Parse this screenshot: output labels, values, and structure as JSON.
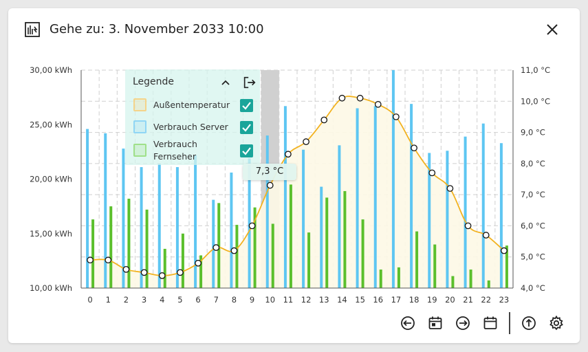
{
  "header": {
    "title": "Gehe zu: 3. November 2033 10:00",
    "icon": "building-meter-icon",
    "close_icon": "close-icon"
  },
  "legend": {
    "title": "Legende",
    "items": [
      {
        "label": "Außentemperatur",
        "color": "#f5d48a",
        "checked": true
      },
      {
        "label": "Verbrauch Server",
        "color": "#8fd6f5",
        "checked": true
      },
      {
        "label": "Verbrauch Fernseher",
        "color": "#9fe08a",
        "checked": true
      }
    ]
  },
  "tooltip": {
    "text": "7,3 °C"
  },
  "toolbar": {
    "icons": [
      "previous-icon",
      "calendar-day-icon",
      "next-icon",
      "calendar-icon",
      "upload-icon",
      "settings-icon"
    ]
  },
  "colors": {
    "server_bar": "#5ec6f2",
    "tv_bar": "#5bbf2c",
    "temperature_line": "#f2b21f",
    "temperature_fill": "#fdf8e6",
    "highlight": "#c8c8c8",
    "check": "#1aa59a"
  },
  "chart_data": {
    "type": "bar",
    "categories": [
      "0",
      "1",
      "2",
      "3",
      "4",
      "5",
      "6",
      "7",
      "8",
      "9",
      "10",
      "11",
      "12",
      "13",
      "14",
      "15",
      "16",
      "17",
      "18",
      "19",
      "20",
      "21",
      "22",
      "23"
    ],
    "highlight_category": "10",
    "left_axis": {
      "ylim": [
        10,
        30
      ],
      "ticks": [
        "10,00 kWh",
        "15,00 kWh",
        "20,00 kWh",
        "25,00 kWh",
        "30,00 kWh"
      ]
    },
    "right_axis": {
      "ylim": [
        4.0,
        11.0
      ],
      "ticks": [
        "4,0 °C",
        "5,0 °C",
        "6,0 °C",
        "7,0 °C",
        "8,0 °C",
        "9,0 °C",
        "10,0 °C",
        "11,0 °C"
      ]
    },
    "grid": true,
    "series": [
      {
        "name": "Verbrauch Server",
        "axis": "left",
        "kind": "bar",
        "values": [
          24.6,
          24.2,
          22.8,
          21.1,
          21.4,
          21.1,
          22.2,
          18.1,
          20.6,
          21.9,
          24.0,
          26.7,
          22.7,
          19.3,
          23.1,
          26.5,
          26.7,
          30.0,
          26.9,
          22.4,
          22.6,
          23.9,
          25.1,
          23.3
        ]
      },
      {
        "name": "Verbrauch Fernseher",
        "axis": "left",
        "kind": "bar",
        "values": [
          16.3,
          17.5,
          18.2,
          17.2,
          13.6,
          15.0,
          13.0,
          17.8,
          15.8,
          17.4,
          15.9,
          19.5,
          15.1,
          18.3,
          18.9,
          16.3,
          11.7,
          11.9,
          15.2,
          14.0,
          11.1,
          11.7,
          10.7,
          13.9
        ]
      },
      {
        "name": "Außentemperatur",
        "axis": "right",
        "kind": "line",
        "values": [
          4.9,
          4.9,
          4.6,
          4.5,
          4.4,
          4.5,
          4.8,
          5.3,
          5.2,
          6.0,
          7.3,
          8.3,
          8.7,
          9.4,
          10.1,
          10.1,
          9.9,
          9.5,
          8.5,
          7.7,
          7.2,
          6.0,
          5.7,
          5.2
        ]
      }
    ]
  }
}
